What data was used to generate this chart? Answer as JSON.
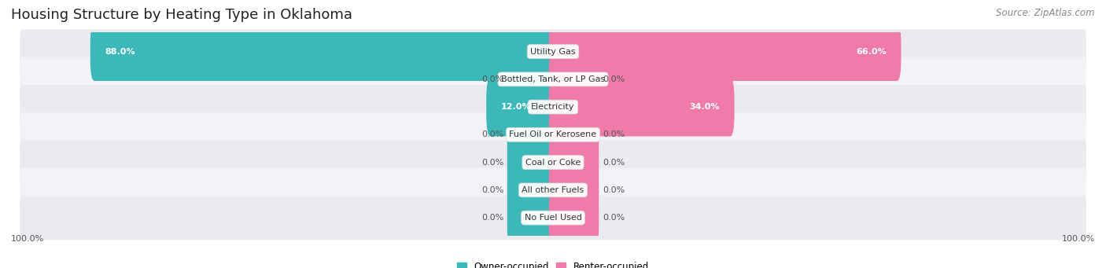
{
  "title": "Housing Structure by Heating Type in Oklahoma",
  "source": "Source: ZipAtlas.com",
  "categories": [
    "Utility Gas",
    "Bottled, Tank, or LP Gas",
    "Electricity",
    "Fuel Oil or Kerosene",
    "Coal or Coke",
    "All other Fuels",
    "No Fuel Used"
  ],
  "owner_values": [
    88.0,
    0.0,
    12.0,
    0.0,
    0.0,
    0.0,
    0.0
  ],
  "renter_values": [
    66.0,
    0.0,
    34.0,
    0.0,
    0.0,
    0.0,
    0.0
  ],
  "owner_color": "#3db8b8",
  "renter_color": "#f07aaa",
  "row_bg_even": "#eaeaef",
  "row_bg_odd": "#f2f2f7",
  "axis_label_left": "100.0%",
  "axis_label_right": "100.0%",
  "max_val": 100.0,
  "stub_size": 8.0,
  "title_fontsize": 13,
  "source_fontsize": 8.5,
  "value_fontsize": 8,
  "cat_fontsize": 8,
  "legend_fontsize": 8.5
}
